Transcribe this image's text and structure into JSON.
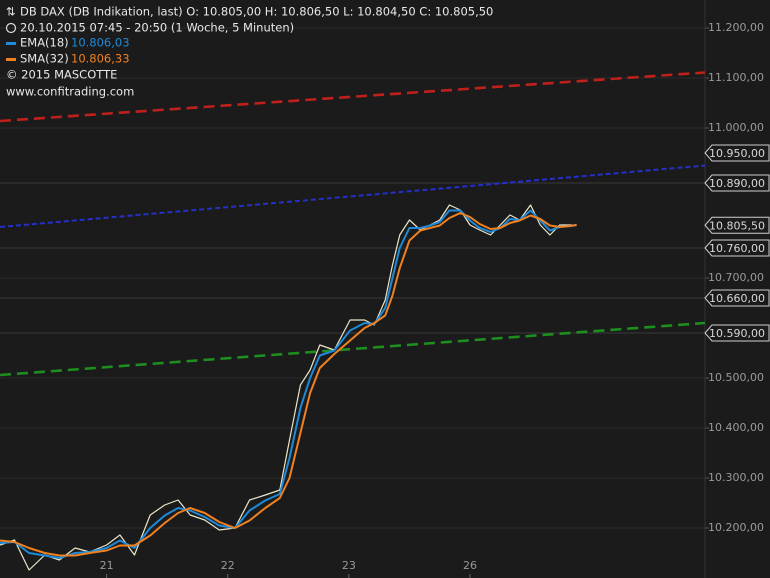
{
  "chart_data": {
    "type": "line",
    "title": "DB DAX (DB Indikation, last)  O: 10.805,00  H: 10.806,50  L: 10.804,50  C: 10.805,50",
    "subtitle": "20.10.2015 07:45 - 20:50 (1 Woche, 5 Minuten)",
    "copyright": "© 2015 MASCOTTE",
    "source": "www.confitrading.com",
    "x": [
      0.12,
      0.24,
      0.36,
      0.49,
      0.61,
      0.74,
      0.86,
      1.0,
      1.11,
      1.23,
      1.36,
      1.48,
      1.59,
      1.69,
      1.81,
      1.93,
      2.06,
      2.18,
      2.31,
      2.43,
      2.51,
      2.6,
      2.68,
      2.76,
      2.88,
      3.01,
      3.13,
      3.21,
      3.3,
      3.36,
      3.42,
      3.5,
      3.59,
      3.67,
      3.75,
      3.83,
      3.92,
      4.0,
      4.08,
      4.17,
      4.25,
      4.33,
      4.41,
      4.5,
      4.58,
      4.66,
      4.74,
      4.83,
      4.88
    ],
    "series": [
      {
        "color": "#ece6c8",
        "values": [
          10166,
          10176,
          10116,
          10146,
          10136,
          10160,
          10152,
          10166,
          10186,
          10146,
          10226,
          10246,
          10256,
          10226,
          10216,
          10196,
          10200,
          10256,
          10266,
          10276,
          10376,
          10486,
          10516,
          10566,
          10556,
          10616,
          10616,
          10606,
          10656,
          10726,
          10786,
          10816,
          10796,
          10806,
          10816,
          10846,
          10836,
          10806,
          10796,
          10786,
          10806,
          10826,
          10816,
          10846,
          10806,
          10786,
          10806,
          10806,
          10805.5
        ]
      },
      {
        "name": "EMA(18)",
        "legend_value": "10.806,03",
        "color": "#1e8ad8",
        "values": [
          10170,
          10172,
          10150,
          10145,
          10140,
          10150,
          10152,
          10160,
          10175,
          10160,
          10200,
          10225,
          10240,
          10235,
          10222,
          10205,
          10200,
          10235,
          10255,
          10268,
          10340,
          10440,
          10500,
          10545,
          10555,
          10595,
          10610,
          10608,
          10640,
          10700,
          10760,
          10800,
          10800,
          10805,
          10812,
          10835,
          10835,
          10815,
          10800,
          10792,
          10800,
          10818,
          10816,
          10835,
          10815,
          10795,
          10802,
          10804,
          10806.03
        ]
      },
      {
        "name": "SMA(32)",
        "legend_value": "10.806,33",
        "color": "#f08020",
        "values": [
          10175,
          10172,
          10160,
          10150,
          10145,
          10145,
          10150,
          10155,
          10165,
          10165,
          10185,
          10210,
          10230,
          10240,
          10230,
          10212,
          10200,
          10215,
          10240,
          10260,
          10300,
          10390,
          10470,
          10520,
          10548,
          10575,
          10600,
          10610,
          10625,
          10665,
          10720,
          10775,
          10795,
          10800,
          10805,
          10820,
          10830,
          10822,
          10808,
          10798,
          10800,
          10810,
          10815,
          10825,
          10818,
          10805,
          10802,
          10804,
          10806.33
        ]
      }
    ],
    "trendlines": [
      {
        "color": "#c0201c",
        "x": [
          0.12,
          5.94
        ],
        "values": [
          11014,
          11111
        ]
      },
      {
        "color": "#2430c8",
        "x": [
          0.12,
          5.94
        ],
        "values": [
          10802,
          10925
        ]
      },
      {
        "color": "#1e8e1e",
        "x": [
          0.12,
          5.94
        ],
        "values": [
          10506,
          10610
        ]
      }
    ],
    "price_markers": [
      {
        "value": 10950,
        "label": "10.950,00",
        "line": false
      },
      {
        "value": 10890,
        "label": "10.890,00",
        "line": true
      },
      {
        "value": 10805.5,
        "label": "10.805,50",
        "line": false
      },
      {
        "value": 10760,
        "label": "10.760,00",
        "line": true
      },
      {
        "value": 10660,
        "label": "10.660,00",
        "line": true
      },
      {
        "value": 10590,
        "label": "10.590,00",
        "line": true
      }
    ],
    "xlim": [
      0.12,
      5.94
    ],
    "xticks": [
      {
        "value": 1,
        "label": "21"
      },
      {
        "value": 2,
        "label": "22"
      },
      {
        "value": 3,
        "label": "23"
      },
      {
        "value": 4,
        "label": "26"
      }
    ],
    "ylim": [
      10100,
      11256
    ],
    "yticks": [
      {
        "value": 10200,
        "label": "10.200,00"
      },
      {
        "value": 10300,
        "label": "10.300,00"
      },
      {
        "value": 10400,
        "label": "10.400,00"
      },
      {
        "value": 10500,
        "label": "10.500,00"
      },
      {
        "value": 10700,
        "label": "10.700,00"
      },
      {
        "value": 11000,
        "label": "11.000,00"
      },
      {
        "value": 11100,
        "label": "11.100,00"
      },
      {
        "value": 11200,
        "label": "11.200,00"
      }
    ],
    "grid": true
  }
}
